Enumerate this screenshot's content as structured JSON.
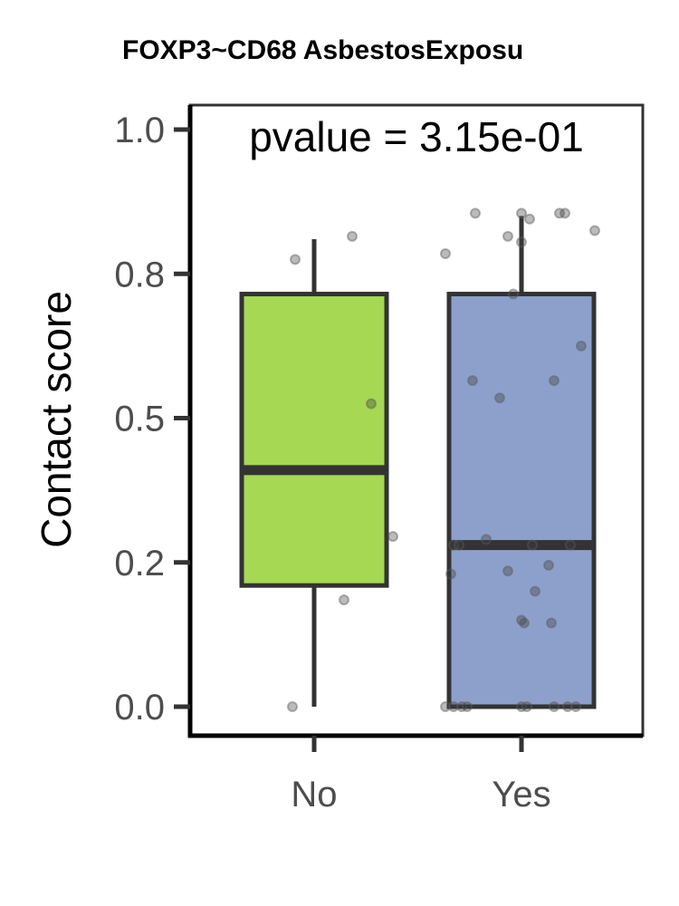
{
  "chart_data": {
    "type": "box",
    "title": "FOXP3~CD68 AsbestosExposu",
    "xlabel": "",
    "ylabel": "Contact score",
    "annotation": "pvalue = 3.15e-01",
    "ylim": [
      -0.05,
      1.05
    ],
    "yticks": [
      0.0,
      0.25,
      0.5,
      0.75,
      1.0
    ],
    "ytick_labels": [
      "0.0",
      "0.2",
      "0.5",
      "0.8",
      "1.0"
    ],
    "categories": [
      "No",
      "Yes"
    ],
    "grid": false,
    "legend": "none",
    "series": [
      {
        "category": "No",
        "color": "#a6d854",
        "q1": 0.21,
        "median": 0.41,
        "q3": 0.715,
        "whisker_low": 0.0,
        "whisker_high": 0.81,
        "points": [
          {
            "x": -0.07,
            "y": 0.775
          },
          {
            "x": 0.14,
            "y": 0.815
          },
          {
            "x": 0.21,
            "y": 0.525
          },
          {
            "x": 0.29,
            "y": 0.295
          },
          {
            "x": 0.11,
            "y": 0.185
          },
          {
            "x": -0.08,
            "y": 0.0
          }
        ]
      },
      {
        "category": "Yes",
        "color": "#8da0cb",
        "q1": 0.0,
        "median": 0.28,
        "q3": 0.715,
        "whisker_low": 0.0,
        "whisker_high": 0.85,
        "points": [
          {
            "x": -0.17,
            "y": 0.855
          },
          {
            "x": 0.0,
            "y": 0.855
          },
          {
            "x": 0.03,
            "y": 0.845
          },
          {
            "x": 0.14,
            "y": 0.855
          },
          {
            "x": 0.16,
            "y": 0.855
          },
          {
            "x": 0.27,
            "y": 0.825
          },
          {
            "x": -0.05,
            "y": 0.815
          },
          {
            "x": 0.0,
            "y": 0.805
          },
          {
            "x": -0.28,
            "y": 0.785
          },
          {
            "x": -0.03,
            "y": 0.715
          },
          {
            "x": 0.22,
            "y": 0.625
          },
          {
            "x": -0.18,
            "y": 0.565
          },
          {
            "x": 0.12,
            "y": 0.565
          },
          {
            "x": -0.08,
            "y": 0.535
          },
          {
            "x": -0.13,
            "y": 0.29
          },
          {
            "x": -0.25,
            "y": 0.28
          },
          {
            "x": -0.23,
            "y": 0.28
          },
          {
            "x": 0.04,
            "y": 0.28
          },
          {
            "x": 0.18,
            "y": 0.28
          },
          {
            "x": 0.1,
            "y": 0.245
          },
          {
            "x": -0.05,
            "y": 0.235
          },
          {
            "x": -0.26,
            "y": 0.23
          },
          {
            "x": 0.05,
            "y": 0.2
          },
          {
            "x": 0.0,
            "y": 0.15
          },
          {
            "x": 0.01,
            "y": 0.145
          },
          {
            "x": 0.11,
            "y": 0.145
          },
          {
            "x": -0.28,
            "y": 0.0
          },
          {
            "x": -0.25,
            "y": 0.0
          },
          {
            "x": -0.22,
            "y": 0.0
          },
          {
            "x": -0.2,
            "y": 0.0
          },
          {
            "x": 0.0,
            "y": 0.0
          },
          {
            "x": 0.02,
            "y": 0.0
          },
          {
            "x": 0.12,
            "y": 0.0
          },
          {
            "x": 0.17,
            "y": 0.0
          },
          {
            "x": 0.2,
            "y": 0.0
          }
        ]
      }
    ]
  }
}
